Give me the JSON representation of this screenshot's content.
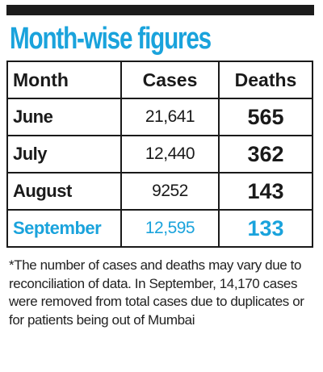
{
  "title": "Month-wise figures",
  "colors": {
    "accent": "#1aa3dc",
    "text": "#1a1a1a",
    "bar": "#1c1c1c"
  },
  "table": {
    "headers": {
      "month": "Month",
      "cases": "Cases",
      "deaths": "Deaths"
    },
    "rows": [
      {
        "month": "June",
        "cases": "21,641",
        "deaths": "565"
      },
      {
        "month": "July",
        "cases": "12,440",
        "deaths": "362"
      },
      {
        "month": "August",
        "cases": "9252",
        "deaths": "143"
      },
      {
        "month": "September",
        "cases": "12,595",
        "deaths": "133",
        "highlighted": true
      }
    ]
  },
  "footnote": "*The number of cases and deaths may vary due to reconciliation of data. In September, 14,170 cases were removed from total cases due to duplicates or for patients being out of Mumbai"
}
